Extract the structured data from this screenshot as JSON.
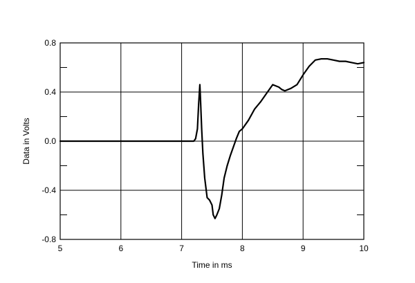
{
  "chart_data": {
    "type": "line",
    "title": "",
    "xlabel": "Time in ms",
    "ylabel": "Data in Volts",
    "xlim": [
      5,
      10
    ],
    "ylim": [
      -0.8,
      0.8
    ],
    "x_ticks": [
      5,
      6,
      7,
      8,
      9,
      10
    ],
    "x_tick_labels": [
      "5",
      "6",
      "7",
      "8",
      "9",
      "10"
    ],
    "y_ticks": [
      -0.8,
      -0.4,
      0.0,
      0.4,
      0.8
    ],
    "y_tick_labels": [
      "-0.8",
      "-0.4",
      "0.0",
      "0.4",
      "0.8"
    ],
    "y_minor_step": 0.2,
    "grid": true,
    "legend": "none",
    "series": [
      {
        "x": [
          5.0,
          7.0,
          7.2,
          7.23,
          7.26,
          7.28,
          7.3,
          7.31,
          7.33,
          7.35,
          7.38,
          7.42,
          7.46,
          7.5,
          7.52,
          7.55,
          7.58,
          7.62,
          7.66,
          7.7,
          7.75,
          7.8,
          7.85,
          7.9,
          7.95,
          8.0,
          8.1,
          8.2,
          8.3,
          8.4,
          8.5,
          8.55,
          8.6,
          8.65,
          8.7,
          8.8,
          8.9,
          9.0,
          9.1,
          9.2,
          9.3,
          9.4,
          9.5,
          9.6,
          9.7,
          9.8,
          9.9,
          10.0
        ],
        "y": [
          0.0,
          0.0,
          0.0,
          0.02,
          0.1,
          0.3,
          0.46,
          0.35,
          0.1,
          -0.1,
          -0.3,
          -0.46,
          -0.48,
          -0.52,
          -0.6,
          -0.63,
          -0.6,
          -0.55,
          -0.44,
          -0.3,
          -0.2,
          -0.12,
          -0.05,
          0.02,
          0.08,
          0.1,
          0.17,
          0.26,
          0.32,
          0.39,
          0.46,
          0.45,
          0.44,
          0.42,
          0.41,
          0.43,
          0.46,
          0.54,
          0.61,
          0.66,
          0.67,
          0.67,
          0.66,
          0.65,
          0.65,
          0.64,
          0.63,
          0.64
        ]
      }
    ]
  }
}
